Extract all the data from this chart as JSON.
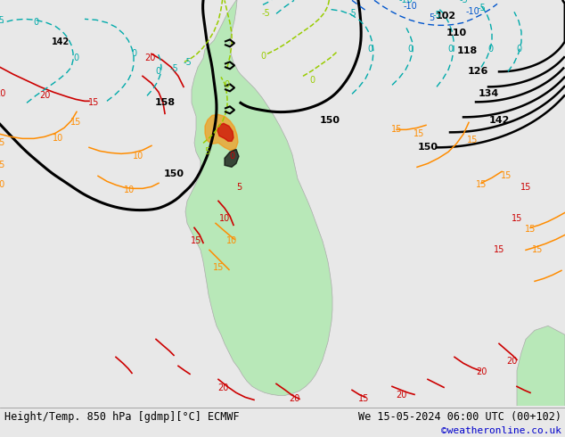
{
  "title_bottom_left": "Height/Temp. 850 hPa [gdmp][°C] ECMWF",
  "title_bottom_right": "We 15-05-2024 06:00 UTC (00+102)",
  "credit": "©weatheronline.co.uk",
  "bg_color": "#e8e8e8",
  "land_color": "#b8e8b8",
  "sea_color": "#e8e8e8",
  "bottom_bar_color": "#ffffff",
  "font_size_bottom": 9,
  "credit_color": "#0000cc",
  "contour_colors": {
    "black": "#000000",
    "red": "#cc0000",
    "orange": "#ff8c00",
    "yellow_green": "#99cc00",
    "cyan": "#00cccc",
    "blue": "#0066cc",
    "dark_red": "#8b0000"
  },
  "contour_labels": {
    "black_labels": [
      "150",
      "150",
      "150",
      "158",
      "142",
      "142",
      "134",
      "126",
      "118",
      "110",
      "102"
    ],
    "temp_pos_red": [
      "20",
      "20",
      "15",
      "20",
      "20",
      "15",
      "15",
      "10",
      "15",
      "20",
      "20"
    ],
    "temp_neg_cyan": [
      "-5",
      "-10",
      "0",
      "0",
      "0",
      "-5",
      "-5",
      "0",
      "-5"
    ],
    "temp_orange": [
      "15",
      "10",
      "5",
      "15",
      "10",
      "15",
      "15",
      "5"
    ],
    "temp_green": [
      "-5",
      "0",
      "-5",
      "0",
      "0",
      "5",
      "-5"
    ]
  },
  "map_extent": [
    -100,
    -20,
    -60,
    15
  ],
  "figsize": [
    6.34,
    4.9
  ],
  "dpi": 100
}
